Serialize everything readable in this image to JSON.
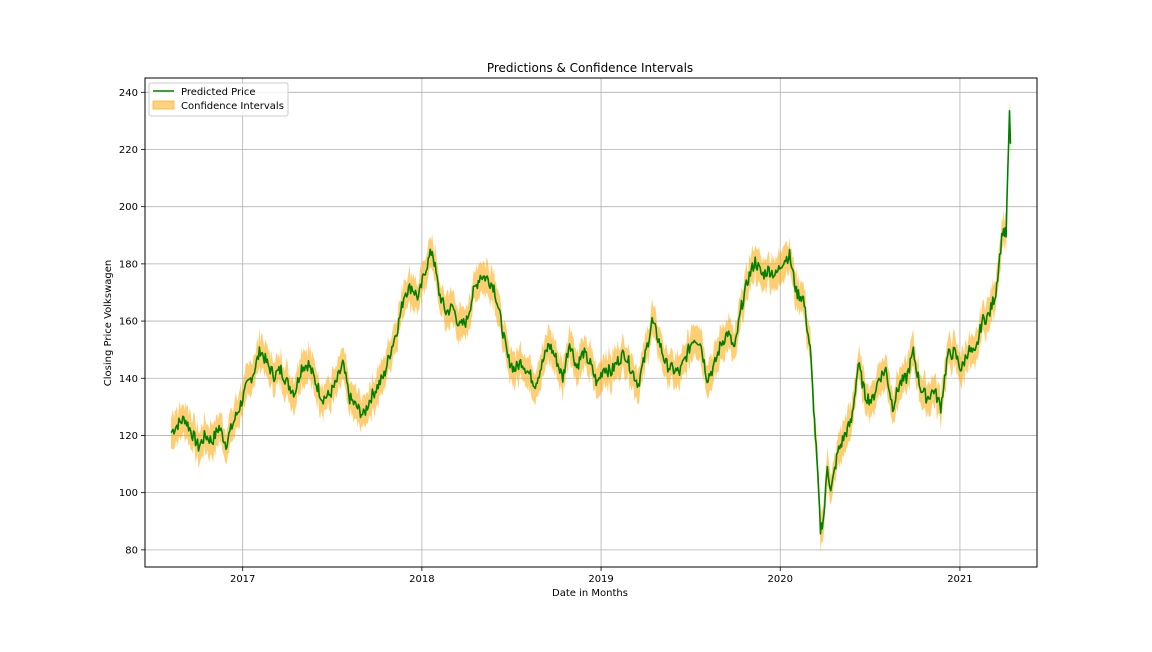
{
  "chart_data": {
    "type": "line",
    "title": "Predictions & Confidence Intervals",
    "xlabel": "Date in Months",
    "ylabel": "Closing Price Volkswagen",
    "ylim": [
      74,
      245
    ],
    "xlim": [
      "2016-06-16",
      "2021-06-07"
    ],
    "grid": true,
    "legend_position": "top-left",
    "x_ticks": [
      {
        "date": "2017-01-01",
        "label": "2017"
      },
      {
        "date": "2018-01-01",
        "label": "2018"
      },
      {
        "date": "2019-01-01",
        "label": "2019"
      },
      {
        "date": "2020-01-01",
        "label": "2020"
      },
      {
        "date": "2021-01-01",
        "label": "2021"
      }
    ],
    "y_ticks": [
      80,
      100,
      120,
      140,
      160,
      180,
      200,
      220,
      240
    ],
    "series": [
      {
        "name": "Predicted Price",
        "kind": "line",
        "color": "#008000",
        "points": [
          [
            "2016-08-08",
            121
          ],
          [
            "2016-08-22",
            124
          ],
          [
            "2016-09-05",
            126
          ],
          [
            "2016-09-19",
            121
          ],
          [
            "2016-10-03",
            116
          ],
          [
            "2016-10-17",
            120
          ],
          [
            "2016-10-31",
            118
          ],
          [
            "2016-11-14",
            123
          ],
          [
            "2016-11-28",
            117
          ],
          [
            "2016-12-12",
            124
          ],
          [
            "2016-12-26",
            130
          ],
          [
            "2017-01-09",
            137
          ],
          [
            "2017-01-23",
            142
          ],
          [
            "2017-02-06",
            150
          ],
          [
            "2017-02-20",
            145
          ],
          [
            "2017-03-06",
            141
          ],
          [
            "2017-03-20",
            143
          ],
          [
            "2017-04-03",
            138
          ],
          [
            "2017-04-17",
            135
          ],
          [
            "2017-05-01",
            144
          ],
          [
            "2017-05-15",
            145
          ],
          [
            "2017-05-29",
            139
          ],
          [
            "2017-06-12",
            133
          ],
          [
            "2017-06-26",
            134
          ],
          [
            "2017-07-10",
            138
          ],
          [
            "2017-07-24",
            145
          ],
          [
            "2017-08-07",
            133
          ],
          [
            "2017-08-21",
            130
          ],
          [
            "2017-09-04",
            127
          ],
          [
            "2017-09-18",
            133
          ],
          [
            "2017-10-02",
            137
          ],
          [
            "2017-10-16",
            141
          ],
          [
            "2017-10-30",
            150
          ],
          [
            "2017-11-13",
            158
          ],
          [
            "2017-11-27",
            170
          ],
          [
            "2017-12-11",
            172
          ],
          [
            "2017-12-25",
            168
          ],
          [
            "2018-01-08",
            178
          ],
          [
            "2018-01-22",
            185
          ],
          [
            "2018-02-05",
            170
          ],
          [
            "2018-02-19",
            163
          ],
          [
            "2018-03-05",
            165
          ],
          [
            "2018-03-19",
            158
          ],
          [
            "2018-04-02",
            160
          ],
          [
            "2018-04-16",
            170
          ],
          [
            "2018-04-30",
            176
          ],
          [
            "2018-05-14",
            175
          ],
          [
            "2018-05-28",
            172
          ],
          [
            "2018-06-11",
            160
          ],
          [
            "2018-06-25",
            147
          ],
          [
            "2018-07-09",
            143
          ],
          [
            "2018-07-23",
            146
          ],
          [
            "2018-08-06",
            142
          ],
          [
            "2018-08-20",
            138
          ],
          [
            "2018-09-03",
            145
          ],
          [
            "2018-09-17",
            152
          ],
          [
            "2018-10-01",
            147
          ],
          [
            "2018-10-15",
            140
          ],
          [
            "2018-10-29",
            153
          ],
          [
            "2018-11-12",
            144
          ],
          [
            "2018-11-26",
            149
          ],
          [
            "2018-12-10",
            145
          ],
          [
            "2018-12-24",
            138
          ],
          [
            "2019-01-07",
            144
          ],
          [
            "2019-01-21",
            142
          ],
          [
            "2019-02-04",
            146
          ],
          [
            "2019-02-18",
            149
          ],
          [
            "2019-03-04",
            143
          ],
          [
            "2019-03-18",
            138
          ],
          [
            "2019-04-01",
            148
          ],
          [
            "2019-04-15",
            160
          ],
          [
            "2019-04-29",
            153
          ],
          [
            "2019-05-13",
            145
          ],
          [
            "2019-05-27",
            143
          ],
          [
            "2019-06-10",
            142
          ],
          [
            "2019-06-24",
            148
          ],
          [
            "2019-07-08",
            154
          ],
          [
            "2019-07-22",
            153
          ],
          [
            "2019-08-05",
            140
          ],
          [
            "2019-08-19",
            144
          ],
          [
            "2019-09-02",
            152
          ],
          [
            "2019-09-16",
            156
          ],
          [
            "2019-09-30",
            150
          ],
          [
            "2019-10-14",
            165
          ],
          [
            "2019-10-28",
            175
          ],
          [
            "2019-11-11",
            181
          ],
          [
            "2019-11-25",
            176
          ],
          [
            "2019-12-09",
            178
          ],
          [
            "2019-12-23",
            176
          ],
          [
            "2020-01-06",
            181
          ],
          [
            "2020-01-20",
            183
          ],
          [
            "2020-02-03",
            170
          ],
          [
            "2020-02-17",
            168
          ],
          [
            "2020-03-02",
            150
          ],
          [
            "2020-03-09",
            130
          ],
          [
            "2020-03-16",
            110
          ],
          [
            "2020-03-23",
            87
          ],
          [
            "2020-03-30",
            92
          ],
          [
            "2020-04-06",
            110
          ],
          [
            "2020-04-13",
            100
          ],
          [
            "2020-04-27",
            114
          ],
          [
            "2020-05-11",
            120
          ],
          [
            "2020-05-25",
            125
          ],
          [
            "2020-06-08",
            145
          ],
          [
            "2020-06-22",
            134
          ],
          [
            "2020-07-06",
            132
          ],
          [
            "2020-07-20",
            140
          ],
          [
            "2020-08-03",
            143
          ],
          [
            "2020-08-17",
            130
          ],
          [
            "2020-08-31",
            138
          ],
          [
            "2020-09-14",
            140
          ],
          [
            "2020-09-28",
            149
          ],
          [
            "2020-10-12",
            137
          ],
          [
            "2020-10-26",
            133
          ],
          [
            "2020-11-09",
            136
          ],
          [
            "2020-11-23",
            130
          ],
          [
            "2020-12-07",
            148
          ],
          [
            "2020-12-21",
            149
          ],
          [
            "2021-01-04",
            143
          ],
          [
            "2021-01-18",
            150
          ],
          [
            "2021-02-01",
            148
          ],
          [
            "2021-02-15",
            160
          ],
          [
            "2021-03-01",
            162
          ],
          [
            "2021-03-15",
            170
          ],
          [
            "2021-03-29",
            192
          ],
          [
            "2021-04-05",
            190
          ],
          [
            "2021-04-12",
            232
          ],
          [
            "2021-04-14",
            222
          ]
        ]
      },
      {
        "name": "Confidence Intervals",
        "kind": "band",
        "color": "#ffa500",
        "half_width": 4
      }
    ]
  }
}
